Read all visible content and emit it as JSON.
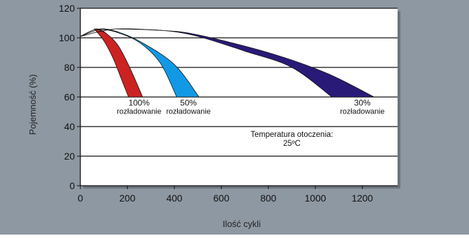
{
  "chart_data": {
    "type": "area",
    "title": "",
    "xlabel": "Ilość cykli",
    "ylabel": "Pojemność (%)",
    "xlim": [
      0,
      1350
    ],
    "ylim": [
      0,
      120
    ],
    "x_ticks": [
      0,
      200,
      400,
      600,
      800,
      1000,
      1200
    ],
    "y_ticks": [
      0,
      20,
      40,
      60,
      80,
      100,
      120
    ],
    "grid": "horizontal",
    "background_color": "#8e98a2",
    "plot_color": "#ffffff",
    "series": [
      {
        "name": "100% rozładowanie",
        "color": "#cc2222",
        "label_lines": [
          "100%",
          "rozładowanie"
        ],
        "label_anchor": [
          250,
          56
        ],
        "upper": [
          [
            0,
            101
          ],
          [
            70,
            106
          ],
          [
            110,
            103
          ],
          [
            160,
            95
          ],
          [
            210,
            80
          ],
          [
            265,
            60
          ]
        ],
        "lower": [
          [
            0,
            101
          ],
          [
            60,
            106
          ],
          [
            100,
            98
          ],
          [
            140,
            86
          ],
          [
            175,
            72
          ],
          [
            205,
            60
          ]
        ]
      },
      {
        "name": "50% rozładowanie",
        "color": "#1199e6",
        "label_lines": [
          "50%",
          "rozładowanie"
        ],
        "label_anchor": [
          460,
          56
        ],
        "upper": [
          [
            0,
            101
          ],
          [
            90,
            106
          ],
          [
            160,
            104
          ],
          [
            260,
            97
          ],
          [
            400,
            82
          ],
          [
            505,
            60
          ]
        ],
        "lower": [
          [
            0,
            101
          ],
          [
            80,
            106
          ],
          [
            150,
            104
          ],
          [
            250,
            97
          ],
          [
            340,
            83
          ],
          [
            410,
            60
          ]
        ]
      },
      {
        "name": "30% rozładowanie",
        "color": "#2a1a78",
        "label_lines": [
          "30%",
          "rozładowanie"
        ],
        "label_anchor": [
          1200,
          56
        ],
        "upper": [
          [
            0,
            101
          ],
          [
            150,
            106
          ],
          [
            350,
            105
          ],
          [
            500,
            102
          ],
          [
            800,
            90
          ],
          [
            1050,
            76
          ],
          [
            1250,
            60
          ]
        ],
        "lower": [
          [
            0,
            101
          ],
          [
            150,
            106
          ],
          [
            350,
            105
          ],
          [
            500,
            101
          ],
          [
            700,
            91
          ],
          [
            900,
            80
          ],
          [
            1070,
            60
          ]
        ]
      }
    ],
    "annotation": {
      "lines": [
        "Temperatura otoczenia:",
        "25ºC"
      ],
      "anchor": [
        900,
        33
      ]
    }
  }
}
